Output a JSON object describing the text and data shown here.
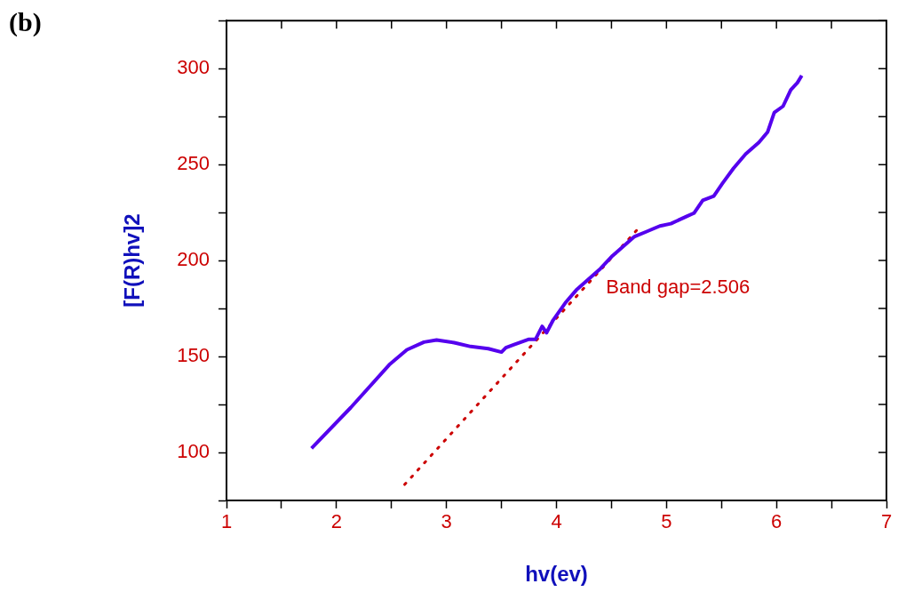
{
  "chart_data": {
    "type": "line",
    "title": "(b)",
    "xlabel": "hv(ev)",
    "ylabel": "[F(R)hv]2",
    "xlim": [
      1,
      7
    ],
    "ylim": [
      75,
      325
    ],
    "xticks": [
      1,
      {
        "value": 1.5,
        "label": null
      },
      2,
      {
        "value": 2.5,
        "label": null
      },
      3,
      {
        "value": 3.5,
        "label": null
      },
      4,
      {
        "value": 4.5,
        "label": null
      },
      5,
      {
        "value": 5.5,
        "label": null
      },
      6,
      {
        "value": 6.5,
        "label": null
      },
      7
    ],
    "yticks": [
      {
        "value": 75,
        "label": null
      },
      100,
      {
        "value": 125,
        "label": null
      },
      150,
      {
        "value": 175,
        "label": null
      },
      200,
      {
        "value": 225,
        "label": null
      },
      250,
      {
        "value": 275,
        "label": null
      },
      300,
      {
        "value": 325,
        "label": null
      }
    ],
    "grid": false,
    "legend": false,
    "marker": "none",
    "series": [
      {
        "color": "#5500ee",
        "line_style": "solid",
        "x": [
          1.773,
          2.13,
          2.48,
          2.64,
          2.795,
          2.91,
          3.07,
          3.22,
          3.38,
          3.5,
          3.54,
          3.61,
          3.75,
          3.81,
          3.87,
          3.91,
          3.97,
          4.08,
          4.18,
          4.4,
          4.51,
          4.71,
          4.82,
          4.94,
          5.04,
          5.18,
          5.25,
          5.33,
          5.43,
          5.51,
          5.61,
          5.72,
          5.84,
          5.92,
          5.98,
          6.06,
          6.13,
          6.19,
          6.23
        ],
        "values": [
          102.2,
          123.4,
          145.7,
          153.5,
          157.5,
          158.6,
          157.2,
          155.2,
          154.1,
          152.3,
          154.6,
          156.1,
          159,
          159,
          165.7,
          162.4,
          169,
          177.9,
          184.6,
          195.8,
          202.5,
          212.5,
          215.1,
          218,
          219.2,
          222.9,
          224.7,
          231.4,
          233.6,
          240.3,
          248.1,
          255.5,
          261.5,
          267,
          277.1,
          280.4,
          288.9,
          292.6,
          296.4
        ]
      },
      {
        "type": "line",
        "color": "#cc0000",
        "line_style": "dotted",
        "x": [
          2.62,
          4.73
        ],
        "values": [
          83.3,
          215.8
        ]
      }
    ],
    "annotations": [
      "Band gap=2.506"
    ]
  }
}
